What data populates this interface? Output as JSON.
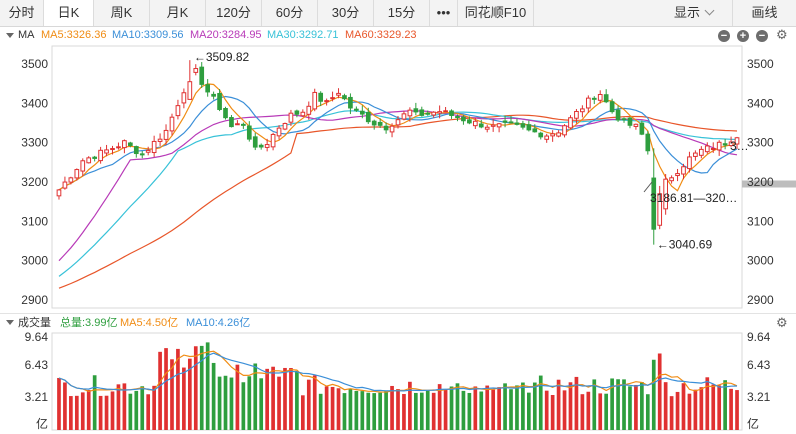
{
  "tabs": [
    {
      "label": "分时",
      "w": 44
    },
    {
      "label": "日K",
      "w": 50,
      "active": true
    },
    {
      "label": "周K",
      "w": 56
    },
    {
      "label": "月K",
      "w": 56
    },
    {
      "label": "120分",
      "w": 56
    },
    {
      "label": "60分",
      "w": 56
    },
    {
      "label": "30分",
      "w": 56
    },
    {
      "label": "15分",
      "w": 56
    },
    {
      "label": "•••",
      "w": 28
    },
    {
      "label": "同花顺F10",
      "w": 76
    }
  ],
  "toolbar": {
    "display_label": "显示",
    "draw_label": "画线"
  },
  "ma_legend": {
    "title": "MA",
    "ma5": "MA5:3326.36",
    "ma10": "MA10:3309.56",
    "ma20": "MA20:3284.95",
    "ma30": "MA30:3292.71",
    "ma60": "MA60:3329.23"
  },
  "volume_legend": {
    "title": "成交量",
    "total": "总量:3.99亿",
    "ma5": "MA5:4.50亿",
    "ma10": "MA10:4.26亿"
  },
  "colors": {
    "up": "#e03131",
    "down": "#2e9e3e",
    "ma5": "#f08c14",
    "ma10": "#3b8fd8",
    "ma20": "#b83ab8",
    "ma30": "#38c2d8",
    "ma60": "#e8562a"
  },
  "price_axis": {
    "ticks": [
      "3500",
      "3400",
      "3300",
      "3200",
      "3100",
      "3000",
      "2900"
    ]
  },
  "volume_axis": {
    "ticks": [
      "9.64",
      "6.43",
      "3.21",
      "亿"
    ]
  },
  "annotations": {
    "high": "3509.82",
    "low": "3040.69",
    "range": "3186.81—320…",
    "last_price": "3…"
  }
}
